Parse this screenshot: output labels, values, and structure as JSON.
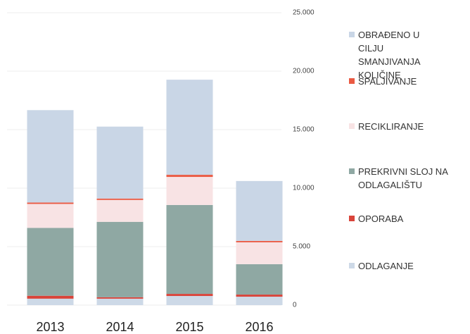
{
  "chart_data": {
    "type": "stacked_bar",
    "categories": [
      "2013",
      "2014",
      "2015",
      "2016"
    ],
    "series": [
      {
        "name": "ODLAGANJE",
        "color": "#cdd9e7",
        "values": [
          550,
          550,
          780,
          720
        ]
      },
      {
        "name": "OPORABA",
        "color": "#d9443a",
        "values": [
          250,
          120,
          180,
          180
        ]
      },
      {
        "name": "PREKRIVNI SLOJ NA ODLAGALIŠTU",
        "color": "#8fa8a3",
        "values": [
          5800,
          6450,
          7600,
          2600
        ]
      },
      {
        "name": "RECIKLIRANJE",
        "color": "#f8e3e4",
        "values": [
          2050,
          1870,
          2400,
          1870
        ]
      },
      {
        "name": "SPALJIVANJE",
        "color": "#ea5a43",
        "values": [
          120,
          120,
          180,
          120
        ]
      },
      {
        "name": "OBRAĐENO U CILJU SMANJIVANJA KOLIČINE",
        "color": "#c9d6e6",
        "values": [
          7900,
          6150,
          8130,
          5120
        ]
      }
    ],
    "ylim": [
      0,
      25000
    ],
    "yticks": [
      0,
      {
        "value": 5000,
        "label": "5.000"
      },
      {
        "value": 10000,
        "label": "10.000"
      },
      {
        "value": 15000,
        "label": "15.000"
      },
      {
        "value": 20000,
        "label": "20.000"
      },
      {
        "value": 25000,
        "label": "25.000"
      }
    ],
    "grid": true
  }
}
